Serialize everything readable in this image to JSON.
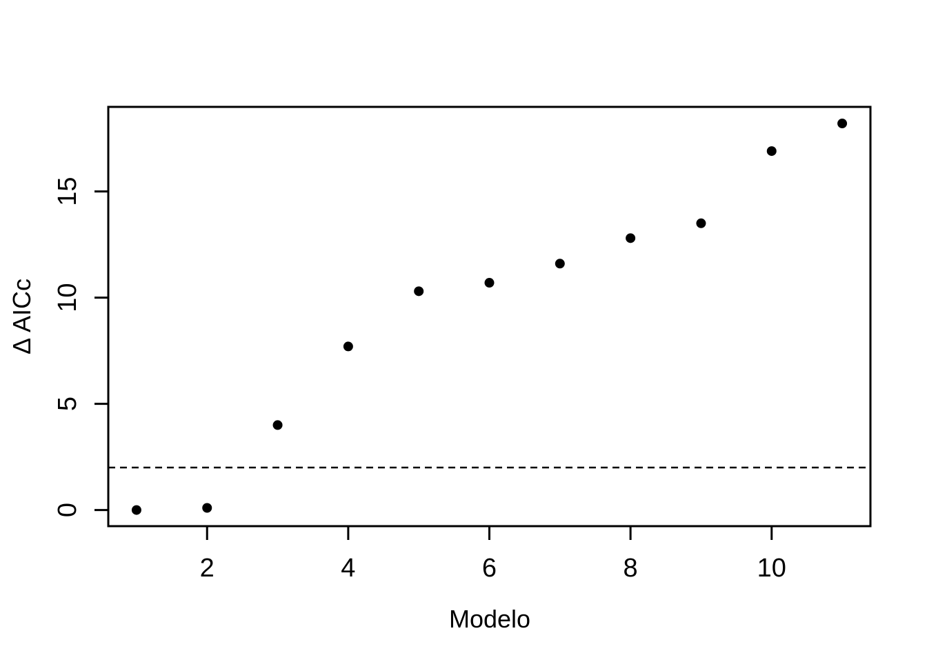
{
  "chart_data": {
    "type": "scatter",
    "title": "",
    "xlabel": "Modelo",
    "ylabel": "Δ AICc",
    "x": [
      1,
      2,
      3,
      4,
      5,
      6,
      7,
      8,
      9,
      10,
      11
    ],
    "y": [
      0,
      0.1,
      4.0,
      7.7,
      10.3,
      10.7,
      11.6,
      12.8,
      13.5,
      16.9,
      18.2
    ],
    "x_ticks": [
      2,
      4,
      6,
      8,
      10
    ],
    "y_ticks": [
      0,
      5,
      10,
      15
    ],
    "xlim": [
      0.6,
      11.4
    ],
    "ylim": [
      -0.76,
      18.98
    ],
    "reference_line": {
      "y": 2,
      "style": "dashed"
    },
    "grid": false,
    "legend": "none",
    "point_color": "#000000",
    "line_color": "#000000",
    "background_color": "#ffffff"
  }
}
